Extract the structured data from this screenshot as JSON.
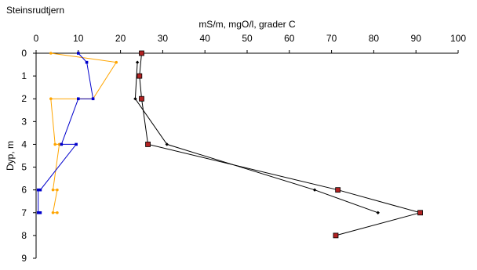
{
  "chart_data": {
    "type": "line",
    "title": "Steinsrudtjern",
    "xlabel": "mS/m, mgO/l, grader C",
    "ylabel": "Dyp, m",
    "xlim": [
      0,
      100
    ],
    "ylim": [
      0,
      9
    ],
    "x_ticks": [
      "0",
      "10",
      "20",
      "30",
      "40",
      "50",
      "60",
      "70",
      "80",
      "90",
      "100"
    ],
    "y_ticks": [
      "0",
      "1",
      "2",
      "3",
      "4",
      "5",
      "6",
      "7",
      "8",
      "9"
    ],
    "y_inverted": true,
    "x_axis_position": "top",
    "grid": false,
    "legend": "none",
    "series": [
      {
        "color": "#FFA500",
        "marker": "circle",
        "points": [
          [
            3.5,
            0
          ],
          [
            19.0,
            0.4
          ],
          [
            13.5,
            2.0
          ],
          [
            3.5,
            2.0
          ],
          [
            4.5,
            4.0
          ],
          [
            5.5,
            4.0
          ],
          [
            4.0,
            6.0
          ],
          [
            5.0,
            6.0
          ],
          [
            4.0,
            7.0
          ],
          [
            5.0,
            7.0
          ]
        ]
      },
      {
        "color": "#0000CC",
        "marker": "square",
        "points": [
          [
            10.0,
            0
          ],
          [
            12.0,
            0.4
          ],
          [
            13.5,
            2.0
          ],
          [
            10.0,
            2.0
          ],
          [
            6.0,
            4.0
          ],
          [
            9.5,
            4.0
          ],
          [
            1.0,
            6.0
          ],
          [
            0.5,
            6.0
          ],
          [
            0.5,
            7.0
          ],
          [
            1.0,
            7.0
          ]
        ]
      },
      {
        "color": "#000000",
        "marker": "diamond",
        "points": [
          [
            24.0,
            0.4
          ],
          [
            23.5,
            2.0
          ],
          [
            31.0,
            4.0
          ],
          [
            66.0,
            6.0
          ],
          [
            81.0,
            7.0
          ]
        ]
      },
      {
        "color": "#000000",
        "marker": "square-large",
        "fill": "#B22222",
        "points": [
          [
            25.0,
            0
          ],
          [
            24.5,
            1.0
          ],
          [
            25.0,
            2.0
          ],
          [
            26.5,
            4.0
          ],
          [
            71.5,
            6.0
          ],
          [
            91.0,
            7.0
          ],
          [
            71.0,
            8.0
          ]
        ]
      }
    ]
  }
}
